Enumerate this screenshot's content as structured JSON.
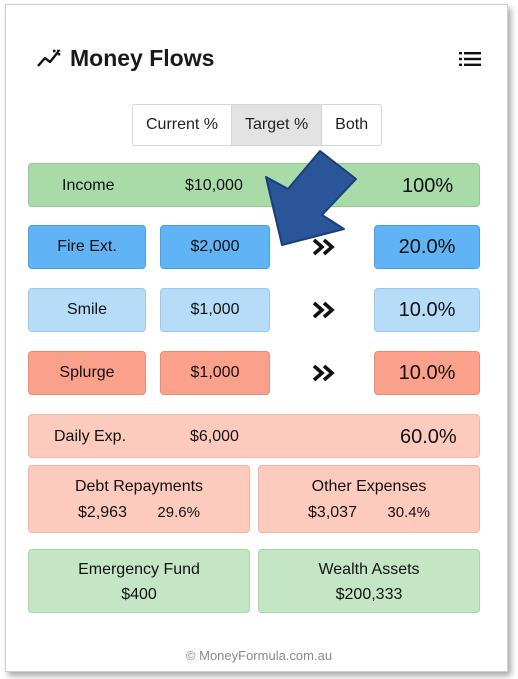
{
  "app": {
    "title": "Money Flows",
    "logo_icon": "trend-line-icon",
    "menu_icon": "list-menu-icon"
  },
  "view_toggle": {
    "options": [
      "Current %",
      "Target %",
      "Both"
    ],
    "selected": "Target %"
  },
  "income": {
    "label": "Income",
    "amount": "$10,000",
    "percent": "100%"
  },
  "allocations": [
    {
      "label": "Fire Ext.",
      "amount": "$2,000",
      "percent": "20.0%",
      "color": "#60b3f4"
    },
    {
      "label": "Smile",
      "amount": "$1,000",
      "percent": "10.0%",
      "color": "#b6dcf8"
    },
    {
      "label": "Splurge",
      "amount": "$1,000",
      "percent": "10.0%",
      "color": "#fba08a"
    }
  ],
  "daily": {
    "label": "Daily Exp.",
    "amount": "$6,000",
    "percent": "60.0%"
  },
  "daily_breakdown": [
    {
      "label": "Debt Repayments",
      "amount": "$2,963",
      "percent": "29.6%"
    },
    {
      "label": "Other Expenses",
      "amount": "$3,037",
      "percent": "30.4%"
    }
  ],
  "funds": [
    {
      "label": "Emergency Fund",
      "amount": "$400"
    },
    {
      "label": "Wealth Assets",
      "amount": "$200,333"
    }
  ],
  "footer": {
    "text": "© MoneyFormula.com.au"
  },
  "overlay": {
    "arrow_color": "#2a5599"
  }
}
